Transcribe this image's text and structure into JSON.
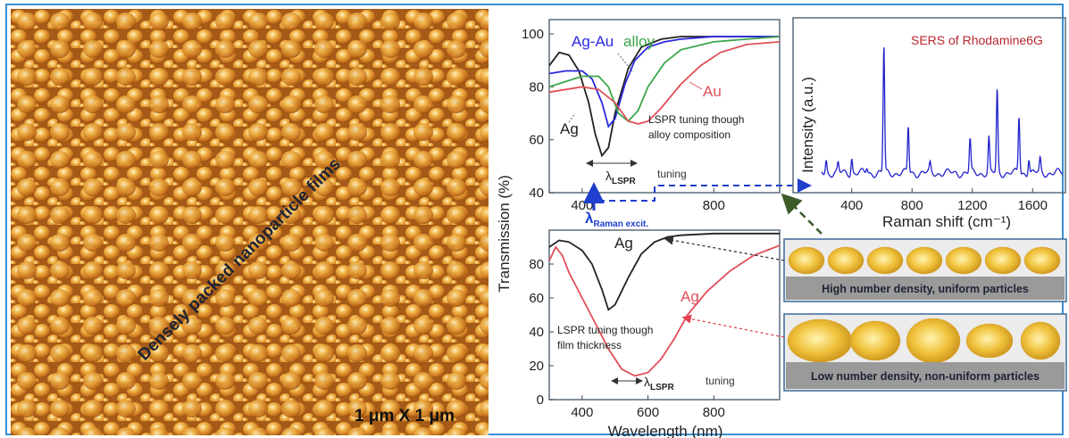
{
  "afm": {
    "label": "Densely packed nanoparticle films",
    "scale": "1 μm X 1 μm"
  },
  "transmission_axis_label": "Transmission (%)",
  "chart_data": [
    {
      "type": "line",
      "ylim": [
        40,
        100
      ],
      "xlim": [
        300,
        1000
      ],
      "xticks": [
        400,
        800
      ],
      "yticks": [
        40,
        60,
        80,
        100
      ],
      "series": [
        {
          "name": "Ag",
          "color": "#222222",
          "x": [
            300,
            330,
            360,
            390,
            420,
            440,
            460,
            480,
            500,
            540,
            580,
            640,
            700,
            800,
            900,
            1000
          ],
          "y": [
            88,
            93,
            92,
            86,
            74,
            62,
            54,
            57,
            70,
            87,
            95,
            98,
            99,
            99,
            99,
            99
          ]
        },
        {
          "name": "Ag-Au alloy",
          "color": "#2a2adf",
          "x": [
            300,
            350,
            400,
            430,
            460,
            480,
            500,
            530,
            560,
            600,
            650,
            700,
            800,
            900,
            1000
          ],
          "y": [
            85,
            86,
            86,
            83,
            74,
            65,
            68,
            81,
            90,
            95,
            97,
            98,
            99,
            99,
            99
          ]
        },
        {
          "name": "Ag-Au alloy",
          "color": "#3aa64a",
          "x": [
            300,
            350,
            400,
            450,
            480,
            510,
            540,
            570,
            600,
            650,
            700,
            800,
            900,
            1000
          ],
          "y": [
            80,
            82,
            84,
            84,
            80,
            70,
            67,
            71,
            80,
            89,
            94,
            97,
            98,
            99
          ]
        },
        {
          "name": "Au",
          "color": "#e0505a",
          "x": [
            300,
            350,
            400,
            450,
            500,
            540,
            570,
            600,
            640,
            700,
            760,
            820,
            900,
            1000
          ],
          "y": [
            78,
            79,
            80,
            79,
            74,
            67,
            66,
            67,
            72,
            81,
            88,
            93,
            96,
            97
          ]
        }
      ],
      "labels": {
        "ag": "Ag",
        "alloy_prefix": "Ag-Au",
        "alloy_suffix": "alloy",
        "au": "Au",
        "annotation_1": "LSPR tuning though",
        "annotation_2": "alloy composition",
        "lambda": "λ",
        "lambda_sub": "LSPR",
        "tuning": "tuning",
        "raman_lambda": "λ",
        "raman_sub": "Raman excit."
      }
    },
    {
      "type": "line",
      "title": "SERS of Rhodamine6G",
      "xlabel": "Raman shift (cm⁻¹)",
      "ylabel": "Intensity (a.u.)",
      "xlim": [
        200,
        1800
      ],
      "xticks": [
        400,
        800,
        1200,
        1600
      ],
      "ylim": [
        0,
        100
      ],
      "series": [
        {
          "name": "",
          "color": "#2222cc",
          "peaks": [
            [
              230,
              10
            ],
            [
              310,
              7
            ],
            [
              400,
              12
            ],
            [
              500,
              4
            ],
            [
              613,
              95
            ],
            [
              775,
              35
            ],
            [
              920,
              6
            ],
            [
              1185,
              25
            ],
            [
              1310,
              26
            ],
            [
              1365,
              62
            ],
            [
              1510,
              43
            ],
            [
              1575,
              12
            ],
            [
              1650,
              10
            ]
          ]
        }
      ]
    },
    {
      "type": "line",
      "xlabel": "Wavelength (nm)",
      "xlim": [
        300,
        1000
      ],
      "ylim": [
        0,
        100
      ],
      "xticks": [
        400,
        600,
        800
      ],
      "yticks": [
        0,
        20,
        40,
        60,
        80
      ],
      "series": [
        {
          "name": "Ag",
          "color": "#222222",
          "x": [
            300,
            330,
            360,
            400,
            430,
            460,
            480,
            500,
            540,
            580,
            620,
            660,
            700,
            800,
            900,
            1000
          ],
          "y": [
            90,
            94,
            93,
            88,
            80,
            65,
            53,
            56,
            72,
            86,
            93,
            96,
            97,
            98,
            98,
            98
          ]
        },
        {
          "name": "Ag",
          "color": "#e0505a",
          "x": [
            300,
            320,
            340,
            360,
            400,
            440,
            480,
            520,
            560,
            600,
            640,
            680,
            720,
            780,
            850,
            920,
            1000
          ],
          "y": [
            82,
            90,
            85,
            75,
            60,
            45,
            30,
            18,
            14,
            16,
            24,
            36,
            50,
            64,
            76,
            85,
            91
          ]
        }
      ],
      "labels": {
        "ag_black": "Ag",
        "ag_red": "Ag",
        "annotation_1": "LSPR tuning though",
        "annotation_2": "film thickness",
        "lambda": "λ",
        "lambda_sub": "LSPR",
        "tuning": "tuning"
      }
    }
  ],
  "particles": {
    "uniform_caption": "High number density, uniform particles",
    "nonuniform_caption": "Low number density, non-uniform particles"
  }
}
